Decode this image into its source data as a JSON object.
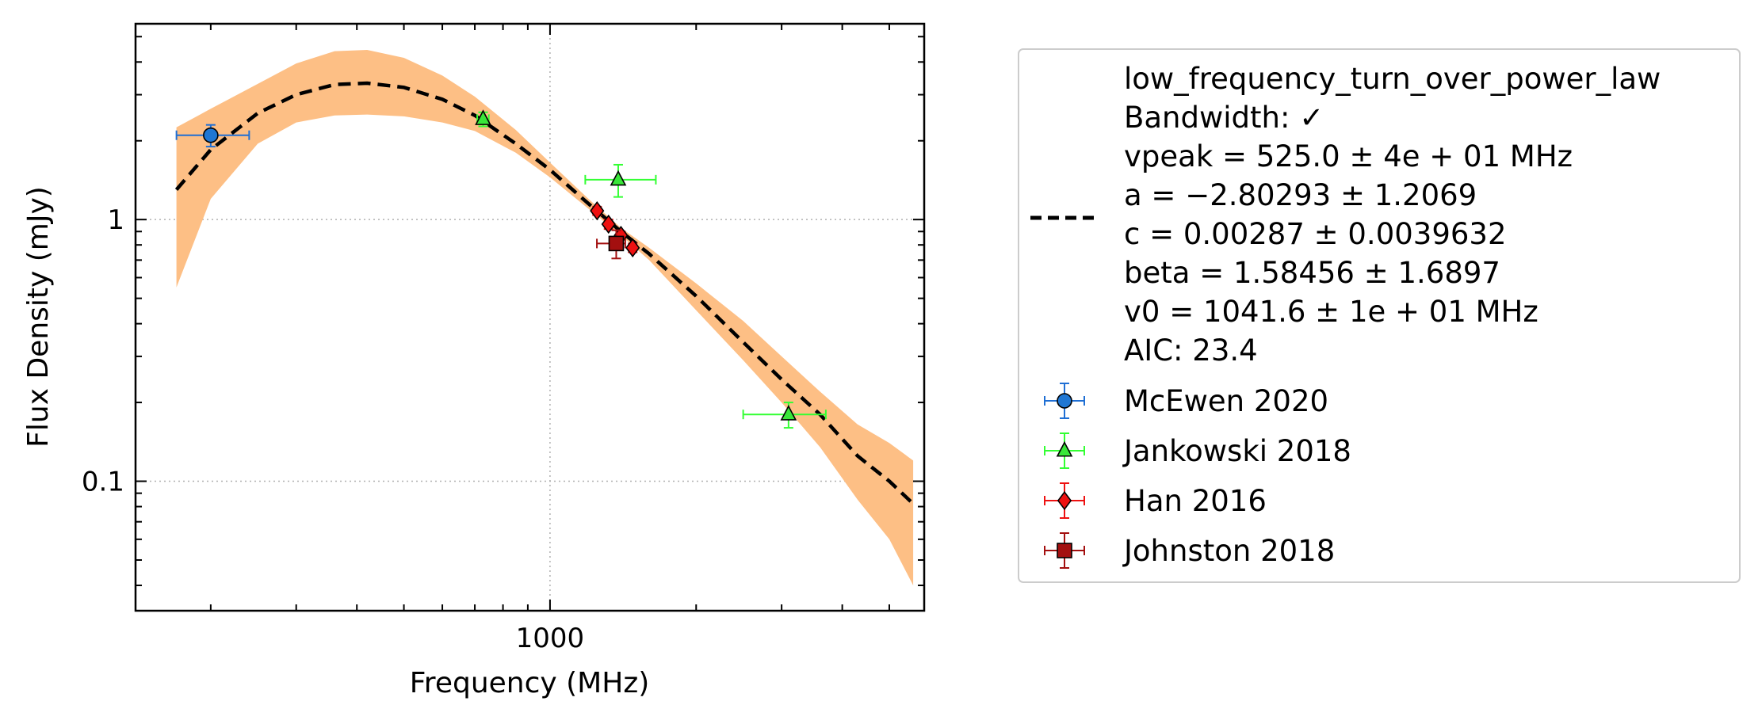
{
  "chart_data": {
    "type": "scatter",
    "xlabel": "Frequency (MHz)",
    "ylabel": "Flux Density (mJy)",
    "x_scale": "log",
    "y_scale": "log",
    "xlim": [
      140,
      5900
    ],
    "ylim": [
      0.032,
      5.6
    ],
    "x_ticks": [
      {
        "value": 1000,
        "label": "1000"
      }
    ],
    "y_ticks": [
      {
        "value": 0.1,
        "label": "0.1"
      },
      {
        "value": 1,
        "label": "1"
      }
    ],
    "grid": true,
    "legend_position": "right (outside plot)",
    "fit": {
      "name": "low_frequency_turn_over_power_law",
      "legend_lines": [
        "low_frequency_turn_over_power_law",
        "Bandwidth: ✓",
        "vpeak = 525.0 ± 4e + 01 MHz",
        "a = −2.80293 ± 1.2069",
        "c = 0.00287 ± 0.0039632",
        "beta = 1.58456 ± 1.6897",
        "v0 = 1041.6 ± 1e + 01 MHz",
        "AIC: 23.4"
      ],
      "line_color": "#000000",
      "line_style": "dashed",
      "band_color": "#fdbf85",
      "curve": [
        {
          "x": 170,
          "y": 1.3,
          "lo": 0.55,
          "hi": 2.25
        },
        {
          "x": 200,
          "y": 1.85,
          "lo": 1.2,
          "hi": 2.65
        },
        {
          "x": 250,
          "y": 2.55,
          "lo": 1.95,
          "hi": 3.3
        },
        {
          "x": 300,
          "y": 3.0,
          "lo": 2.35,
          "hi": 3.95
        },
        {
          "x": 360,
          "y": 3.28,
          "lo": 2.5,
          "hi": 4.4
        },
        {
          "x": 420,
          "y": 3.32,
          "lo": 2.52,
          "hi": 4.45
        },
        {
          "x": 500,
          "y": 3.2,
          "lo": 2.48,
          "hi": 4.15
        },
        {
          "x": 600,
          "y": 2.88,
          "lo": 2.35,
          "hi": 3.55
        },
        {
          "x": 700,
          "y": 2.5,
          "lo": 2.18,
          "hi": 2.95
        },
        {
          "x": 850,
          "y": 1.95,
          "lo": 1.8,
          "hi": 2.2
        },
        {
          "x": 1000,
          "y": 1.55,
          "lo": 1.45,
          "hi": 1.65
        },
        {
          "x": 1200,
          "y": 1.15,
          "lo": 1.1,
          "hi": 1.2
        },
        {
          "x": 1400,
          "y": 0.9,
          "lo": 0.87,
          "hi": 0.93
        },
        {
          "x": 1600,
          "y": 0.74,
          "lo": 0.7,
          "hi": 0.78
        },
        {
          "x": 2000,
          "y": 0.51,
          "lo": 0.45,
          "hi": 0.57
        },
        {
          "x": 2500,
          "y": 0.34,
          "lo": 0.29,
          "hi": 0.41
        },
        {
          "x": 3000,
          "y": 0.245,
          "lo": 0.2,
          "hi": 0.3
        },
        {
          "x": 3600,
          "y": 0.18,
          "lo": 0.135,
          "hi": 0.22
        },
        {
          "x": 4300,
          "y": 0.125,
          "lo": 0.085,
          "hi": 0.165
        },
        {
          "x": 5000,
          "y": 0.1,
          "lo": 0.06,
          "hi": 0.14
        },
        {
          "x": 5600,
          "y": 0.082,
          "lo": 0.04,
          "hi": 0.12
        }
      ]
    },
    "series": [
      {
        "name": "McEwen 2020",
        "marker": "circle",
        "color": "#1f77d4",
        "ecolor": "#1f6fd4",
        "points": [
          {
            "x": 200,
            "y": 2.1,
            "xerr": [
              30,
              40
            ],
            "yerr": [
              0.2,
              0.2
            ]
          }
        ]
      },
      {
        "name": "Jankowski 2018",
        "marker": "triangle",
        "color": "#39e639",
        "ecolor": "#33ff33",
        "points": [
          {
            "x": 728,
            "y": 2.42,
            "xerr": [
              20,
              20
            ],
            "yerr": [
              0.15,
              0.15
            ]
          },
          {
            "x": 1382,
            "y": 1.42,
            "xerr": [
              200,
              270
            ],
            "yerr": [
              0.2,
              0.2
            ]
          },
          {
            "x": 3100,
            "y": 0.18,
            "xerr": [
              600,
              600
            ],
            "yerr": [
              0.02,
              0.02
            ]
          }
        ]
      },
      {
        "name": "Han 2016",
        "marker": "diamond",
        "color": "#ee1111",
        "ecolor": "#ee1111",
        "points": [
          {
            "x": 1250,
            "y": 1.08,
            "xerr": [
              0,
              0
            ],
            "yerr": [
              0.04,
              0.04
            ]
          },
          {
            "x": 1320,
            "y": 0.96,
            "xerr": [
              0,
              0
            ],
            "yerr": [
              0.04,
              0.04
            ]
          },
          {
            "x": 1400,
            "y": 0.87,
            "xerr": [
              0,
              0
            ],
            "yerr": [
              0.03,
              0.03
            ]
          },
          {
            "x": 1480,
            "y": 0.78,
            "xerr": [
              0,
              0
            ],
            "yerr": [
              0.03,
              0.03
            ]
          }
        ]
      },
      {
        "name": "Johnston 2018",
        "marker": "square",
        "color": "#a30f0f",
        "ecolor": "#a30f0f",
        "points": [
          {
            "x": 1369,
            "y": 0.81,
            "xerr": [
              120,
              60
            ],
            "yerr": [
              0.1,
              0.1
            ]
          }
        ]
      }
    ]
  }
}
